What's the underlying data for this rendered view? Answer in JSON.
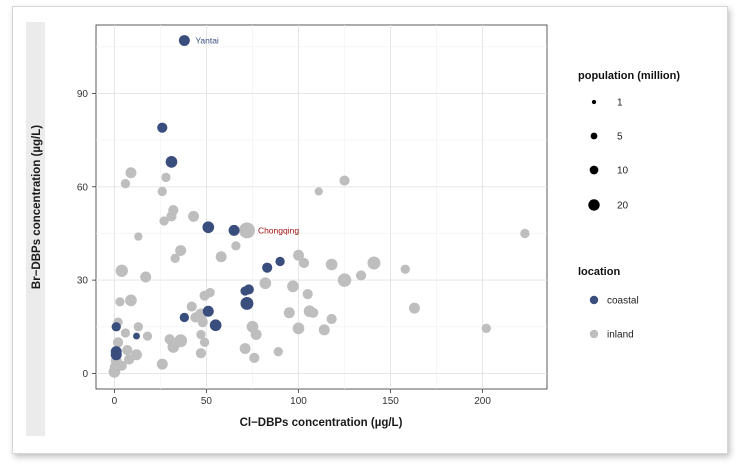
{
  "chart_data": {
    "type": "scatter",
    "xlabel": "Cl−DBPs concentration (µg/L)",
    "ylabel": "Br−DBPs concentration (µg/L)",
    "xlim": [
      -10,
      235
    ],
    "ylim": [
      -5,
      112
    ],
    "x_ticks": [
      0,
      50,
      100,
      150,
      200
    ],
    "y_ticks": [
      0,
      30,
      60,
      90
    ],
    "grid": true,
    "legend_placement": "right",
    "size_legend": {
      "title": "population (million)",
      "entries": [
        {
          "label": "1",
          "value": 1
        },
        {
          "label": "5",
          "value": 5
        },
        {
          "label": "10",
          "value": 10
        },
        {
          "label": "20",
          "value": 20
        }
      ]
    },
    "color_legend": {
      "title": "location",
      "entries": [
        {
          "label": "coastal",
          "color": "#3a4e7e"
        },
        {
          "label": "inland",
          "color": "#bebebe"
        }
      ]
    },
    "annotations": [
      {
        "text": "Yantai",
        "x": 38,
        "y": 107,
        "color": "#3a4e7e"
      },
      {
        "text": "Chongqing",
        "x": 72,
        "y": 46,
        "color": "#a01010"
      }
    ],
    "series": [
      {
        "name": "coastal",
        "color": "#3a4e7e",
        "points": [
          [
            38,
            107,
            5
          ],
          [
            26,
            79,
            4
          ],
          [
            31,
            68,
            6
          ],
          [
            51,
            47,
            6
          ],
          [
            65,
            46,
            5
          ],
          [
            90,
            36,
            3
          ],
          [
            83,
            34,
            4
          ],
          [
            73,
            27,
            4
          ],
          [
            71,
            26.5,
            3
          ],
          [
            72,
            22.5,
            8
          ],
          [
            38,
            18,
            3
          ],
          [
            51,
            20,
            5
          ],
          [
            55,
            15.5,
            6
          ],
          [
            1,
            15,
            3
          ],
          [
            12,
            12,
            1
          ],
          [
            1,
            7,
            5
          ],
          [
            1,
            6,
            5
          ]
        ]
      },
      {
        "name": "inland",
        "color": "#bebebe",
        "points": [
          [
            72,
            46,
            14
          ],
          [
            6,
            61,
            3
          ],
          [
            9,
            64.5,
            5
          ],
          [
            28,
            63,
            3
          ],
          [
            26,
            58.5,
            3
          ],
          [
            125,
            62,
            4
          ],
          [
            111,
            58.5,
            2
          ],
          [
            223,
            45,
            3
          ],
          [
            31,
            50.5,
            4
          ],
          [
            32,
            52.5,
            4
          ],
          [
            43,
            50.5,
            5
          ],
          [
            27,
            49,
            3
          ],
          [
            13,
            44,
            2
          ],
          [
            66,
            41,
            3
          ],
          [
            36,
            39.5,
            5
          ],
          [
            58,
            37.5,
            5
          ],
          [
            33,
            37,
            3
          ],
          [
            100,
            38,
            5
          ],
          [
            103,
            35.5,
            4
          ],
          [
            141,
            35.5,
            8
          ],
          [
            4,
            33,
            7
          ],
          [
            17,
            31,
            5
          ],
          [
            134,
            31.5,
            4
          ],
          [
            158,
            33.5,
            3
          ],
          [
            118,
            35,
            6
          ],
          [
            125,
            30,
            9
          ],
          [
            82,
            29,
            6
          ],
          [
            97,
            28,
            6
          ],
          [
            105,
            25.5,
            4
          ],
          [
            163,
            21,
            5
          ],
          [
            49,
            25,
            4
          ],
          [
            52,
            26,
            3
          ],
          [
            9,
            23.5,
            6
          ],
          [
            3,
            23,
            3
          ],
          [
            42,
            21.5,
            4
          ],
          [
            47,
            19,
            6
          ],
          [
            95,
            19.5,
            5
          ],
          [
            106,
            20,
            6
          ],
          [
            108,
            19.5,
            4
          ],
          [
            118,
            17.5,
            4
          ],
          [
            44,
            18,
            4
          ],
          [
            48,
            16.5,
            4
          ],
          [
            75,
            15,
            6
          ],
          [
            77,
            12.5,
            5
          ],
          [
            100,
            14.5,
            6
          ],
          [
            114,
            14,
            5
          ],
          [
            202,
            14.5,
            3
          ],
          [
            13,
            15,
            3
          ],
          [
            2,
            16.5,
            3
          ],
          [
            6,
            13,
            3
          ],
          [
            18,
            12,
            3
          ],
          [
            47,
            12.5,
            3
          ],
          [
            30,
            11,
            4
          ],
          [
            36,
            10.5,
            8
          ],
          [
            32,
            8.5,
            6
          ],
          [
            49,
            10,
            3
          ],
          [
            71,
            8,
            5
          ],
          [
            89,
            7,
            3
          ],
          [
            76,
            5,
            4
          ],
          [
            47,
            6.5,
            4
          ],
          [
            2,
            10,
            4
          ],
          [
            7,
            7.5,
            4
          ],
          [
            12,
            6,
            5
          ],
          [
            8,
            4.5,
            4
          ],
          [
            1,
            4,
            5
          ],
          [
            4,
            2.5,
            4
          ],
          [
            0,
            0.5,
            6
          ],
          [
            26,
            3,
            5
          ],
          [
            0,
            2,
            3
          ]
        ]
      }
    ]
  }
}
